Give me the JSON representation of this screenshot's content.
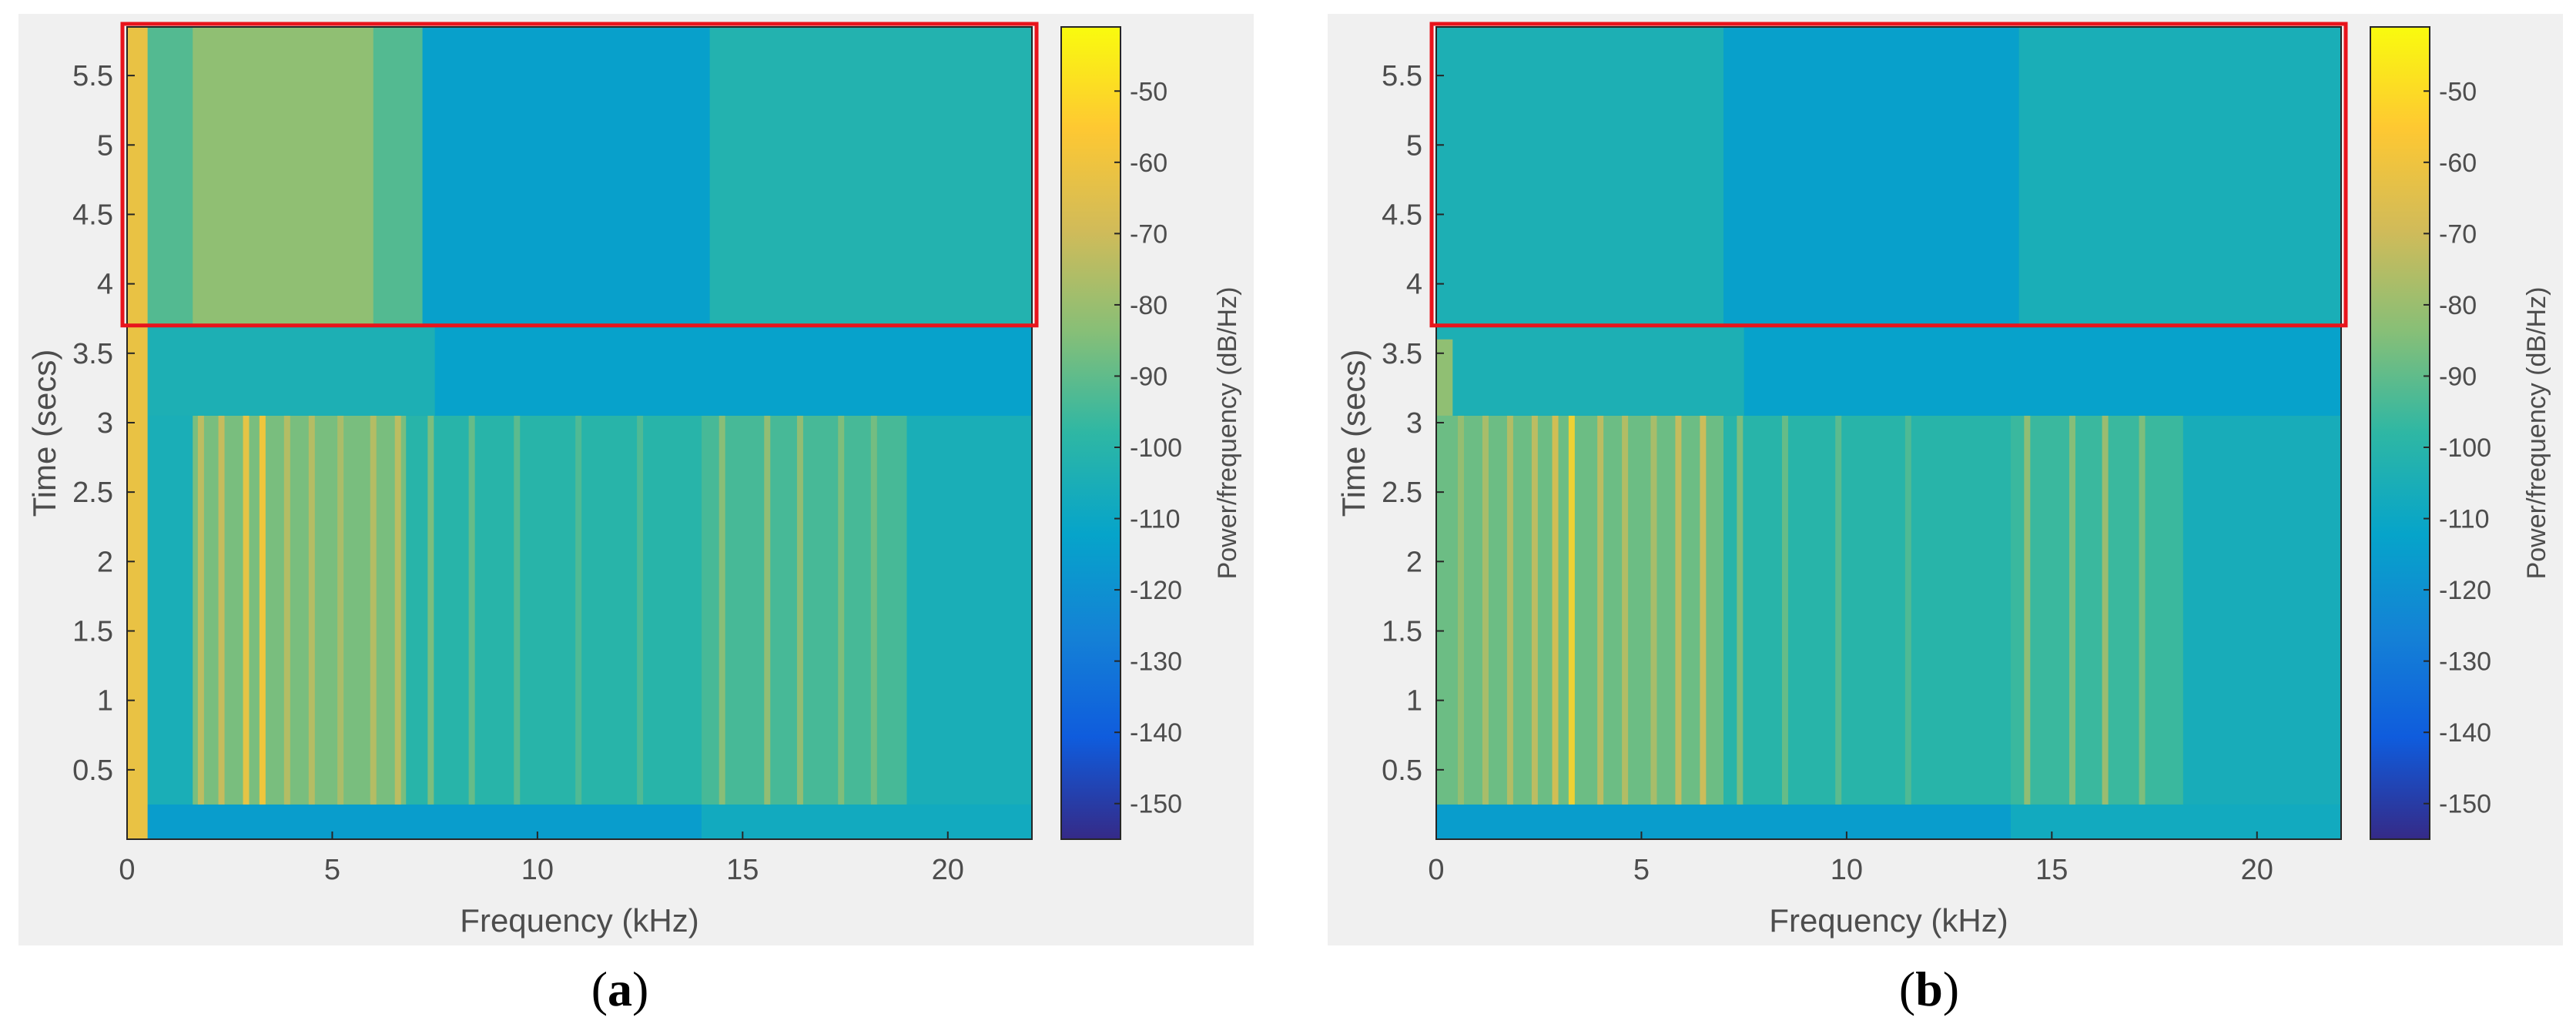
{
  "chart_data": [
    {
      "type": "heatmap",
      "panel_label": "a",
      "title": "",
      "xlabel": "Frequency (kHz)",
      "ylabel": "Time (secs)",
      "xlim": [
        0,
        22.05
      ],
      "ylim": [
        0,
        5.85
      ],
      "x_ticks": [
        0,
        5,
        10,
        15,
        20
      ],
      "y_ticks": [
        0.5,
        1,
        1.5,
        2,
        2.5,
        3,
        3.5,
        4,
        4.5,
        5,
        5.5
      ],
      "colorbar": {
        "label": "Power/frequency (dB/Hz)",
        "range": [
          -155,
          -41
        ],
        "ticks": [
          -50,
          -60,
          -70,
          -80,
          -90,
          -100,
          -110,
          -120,
          -130,
          -140,
          -150
        ],
        "colormap": "parula"
      },
      "highlight_box": {
        "x_range": [
          0,
          22.05
        ],
        "y_range": [
          3.7,
          5.85
        ],
        "color": "#e8141c"
      },
      "regions": [
        {
          "t": [
            0,
            0.25
          ],
          "f": [
            0,
            14
          ],
          "db": -115
        },
        {
          "t": [
            0,
            0.25
          ],
          "f": [
            14,
            22.05
          ],
          "db": -108
        },
        {
          "t": [
            0.25,
            3.05
          ],
          "f": [
            0,
            22.05
          ],
          "db": -105
        },
        {
          "t": [
            0.25,
            3.05
          ],
          "f": [
            1.6,
            6.8
          ],
          "db": -86
        },
        {
          "t": [
            0.25,
            3.05
          ],
          "f": [
            6.8,
            14
          ],
          "db": -100
        },
        {
          "t": [
            0.25,
            3.05
          ],
          "f": [
            14,
            19
          ],
          "db": -94
        },
        {
          "t": [
            3.05,
            3.7
          ],
          "f": [
            0,
            7.5
          ],
          "db": -104
        },
        {
          "t": [
            3.05,
            3.7
          ],
          "f": [
            7.5,
            22.05
          ],
          "db": -113
        },
        {
          "t": [
            3.7,
            5.85
          ],
          "f": [
            0,
            7.2
          ],
          "db": -92
        },
        {
          "t": [
            3.7,
            5.85
          ],
          "f": [
            1.6,
            6.0
          ],
          "db": -82
        },
        {
          "t": [
            3.7,
            5.85
          ],
          "f": [
            7.2,
            14.2
          ],
          "db": -114
        },
        {
          "t": [
            3.7,
            5.85
          ],
          "f": [
            14.2,
            22.05
          ],
          "db": -102
        },
        {
          "t": [
            0,
            5.85
          ],
          "f": [
            0,
            0.5
          ],
          "db": -62
        }
      ],
      "streaks": [
        {
          "f": 1.8,
          "t": [
            0.25,
            3.05
          ],
          "db": -72
        },
        {
          "f": 2.3,
          "t": [
            0.25,
            3.05
          ],
          "db": -70
        },
        {
          "f": 2.9,
          "t": [
            0.25,
            3.05
          ],
          "db": -60
        },
        {
          "f": 3.3,
          "t": [
            0.25,
            3.05
          ],
          "db": -56
        },
        {
          "f": 3.9,
          "t": [
            0.25,
            3.05
          ],
          "db": -74
        },
        {
          "f": 4.5,
          "t": [
            0.25,
            3.05
          ],
          "db": -74
        },
        {
          "f": 5.2,
          "t": [
            0.25,
            3.05
          ],
          "db": -76
        },
        {
          "f": 6.0,
          "t": [
            0.25,
            3.05
          ],
          "db": -74
        },
        {
          "f": 6.6,
          "t": [
            0.25,
            3.05
          ],
          "db": -72
        },
        {
          "f": 7.4,
          "t": [
            0.25,
            3.05
          ],
          "db": -84
        },
        {
          "f": 8.4,
          "t": [
            0.25,
            3.05
          ],
          "db": -88
        },
        {
          "f": 9.5,
          "t": [
            0.25,
            3.05
          ],
          "db": -90
        },
        {
          "f": 11.0,
          "t": [
            0.25,
            3.05
          ],
          "db": -92
        },
        {
          "f": 12.5,
          "t": [
            0.25,
            3.05
          ],
          "db": -92
        },
        {
          "f": 14.5,
          "t": [
            0.25,
            3.05
          ],
          "db": -82
        },
        {
          "f": 15.6,
          "t": [
            0.25,
            3.05
          ],
          "db": -80
        },
        {
          "f": 16.4,
          "t": [
            0.25,
            3.05
          ],
          "db": -80
        },
        {
          "f": 17.4,
          "t": [
            0.25,
            3.05
          ],
          "db": -84
        },
        {
          "f": 18.2,
          "t": [
            0.25,
            3.05
          ],
          "db": -86
        }
      ]
    },
    {
      "type": "heatmap",
      "panel_label": "b",
      "title": "",
      "xlabel": "Frequency (kHz)",
      "ylabel": "Time (secs)",
      "xlim": [
        0,
        22.05
      ],
      "ylim": [
        0,
        5.85
      ],
      "x_ticks": [
        0,
        5,
        10,
        15,
        20
      ],
      "y_ticks": [
        0.5,
        1,
        1.5,
        2,
        2.5,
        3,
        3.5,
        4,
        4.5,
        5,
        5.5
      ],
      "colorbar": {
        "label": "Power/frequency (dB/Hz)",
        "range": [
          -155,
          -41
        ],
        "ticks": [
          -50,
          -60,
          -70,
          -80,
          -90,
          -100,
          -110,
          -120,
          -130,
          -140,
          -150
        ],
        "colormap": "parula"
      },
      "highlight_box": {
        "x_range": [
          0,
          22.05
        ],
        "y_range": [
          3.7,
          5.85
        ],
        "color": "#e8141c"
      },
      "regions": [
        {
          "t": [
            0,
            0.25
          ],
          "f": [
            0,
            14
          ],
          "db": -115
        },
        {
          "t": [
            0,
            0.25
          ],
          "f": [
            14,
            22.05
          ],
          "db": -108
        },
        {
          "t": [
            0.25,
            3.05
          ],
          "f": [
            0,
            22.05
          ],
          "db": -106
        },
        {
          "t": [
            0.25,
            3.05
          ],
          "f": [
            0,
            7
          ],
          "db": -88
        },
        {
          "t": [
            0.25,
            3.05
          ],
          "f": [
            7,
            14
          ],
          "db": -100
        },
        {
          "t": [
            0.25,
            3.05
          ],
          "f": [
            14,
            18.2
          ],
          "db": -96
        },
        {
          "t": [
            3.05,
            3.7
          ],
          "f": [
            0,
            7.5
          ],
          "db": -104
        },
        {
          "t": [
            3.05,
            3.7
          ],
          "f": [
            7.5,
            22.05
          ],
          "db": -113
        },
        {
          "t": [
            3.7,
            5.85
          ],
          "f": [
            0,
            7
          ],
          "db": -104
        },
        {
          "t": [
            3.7,
            5.85
          ],
          "f": [
            7,
            14.2
          ],
          "db": -114
        },
        {
          "t": [
            3.7,
            5.85
          ],
          "f": [
            14.2,
            22.05
          ],
          "db": -105
        },
        {
          "t": [
            3.05,
            3.6
          ],
          "f": [
            0,
            0.4
          ],
          "db": -82
        }
      ],
      "streaks": [
        {
          "f": 0.6,
          "t": [
            0.25,
            3.05
          ],
          "db": -80
        },
        {
          "f": 1.2,
          "t": [
            0.25,
            3.05
          ],
          "db": -76
        },
        {
          "f": 1.8,
          "t": [
            0.25,
            3.05
          ],
          "db": -74
        },
        {
          "f": 2.4,
          "t": [
            0.25,
            3.05
          ],
          "db": -72
        },
        {
          "f": 2.9,
          "t": [
            0.25,
            3.05
          ],
          "db": -66
        },
        {
          "f": 3.3,
          "t": [
            0.25,
            3.05
          ],
          "db": -52
        },
        {
          "f": 4.0,
          "t": [
            0.25,
            3.05
          ],
          "db": -72
        },
        {
          "f": 4.6,
          "t": [
            0.25,
            3.05
          ],
          "db": -74
        },
        {
          "f": 5.3,
          "t": [
            0.25,
            3.05
          ],
          "db": -76
        },
        {
          "f": 5.9,
          "t": [
            0.25,
            3.05
          ],
          "db": -70
        },
        {
          "f": 6.5,
          "t": [
            0.25,
            3.05
          ],
          "db": -68
        },
        {
          "f": 7.4,
          "t": [
            0.25,
            3.05
          ],
          "db": -84
        },
        {
          "f": 8.5,
          "t": [
            0.25,
            3.05
          ],
          "db": -88
        },
        {
          "f": 9.8,
          "t": [
            0.25,
            3.05
          ],
          "db": -90
        },
        {
          "f": 11.5,
          "t": [
            0.25,
            3.05
          ],
          "db": -92
        },
        {
          "f": 14.4,
          "t": [
            0.25,
            3.05
          ],
          "db": -80
        },
        {
          "f": 15.5,
          "t": [
            0.25,
            3.05
          ],
          "db": -82
        },
        {
          "f": 16.3,
          "t": [
            0.25,
            3.05
          ],
          "db": -78
        },
        {
          "f": 17.2,
          "t": [
            0.25,
            3.05
          ],
          "db": -84
        }
      ]
    }
  ],
  "colors": {
    "axis_text": "#4d4d4d",
    "panel_bg": "#f0f0f0",
    "plot_border": "#262626",
    "box": "#e8141c"
  },
  "captions": {
    "a": "(a)",
    "b": "(b)"
  }
}
